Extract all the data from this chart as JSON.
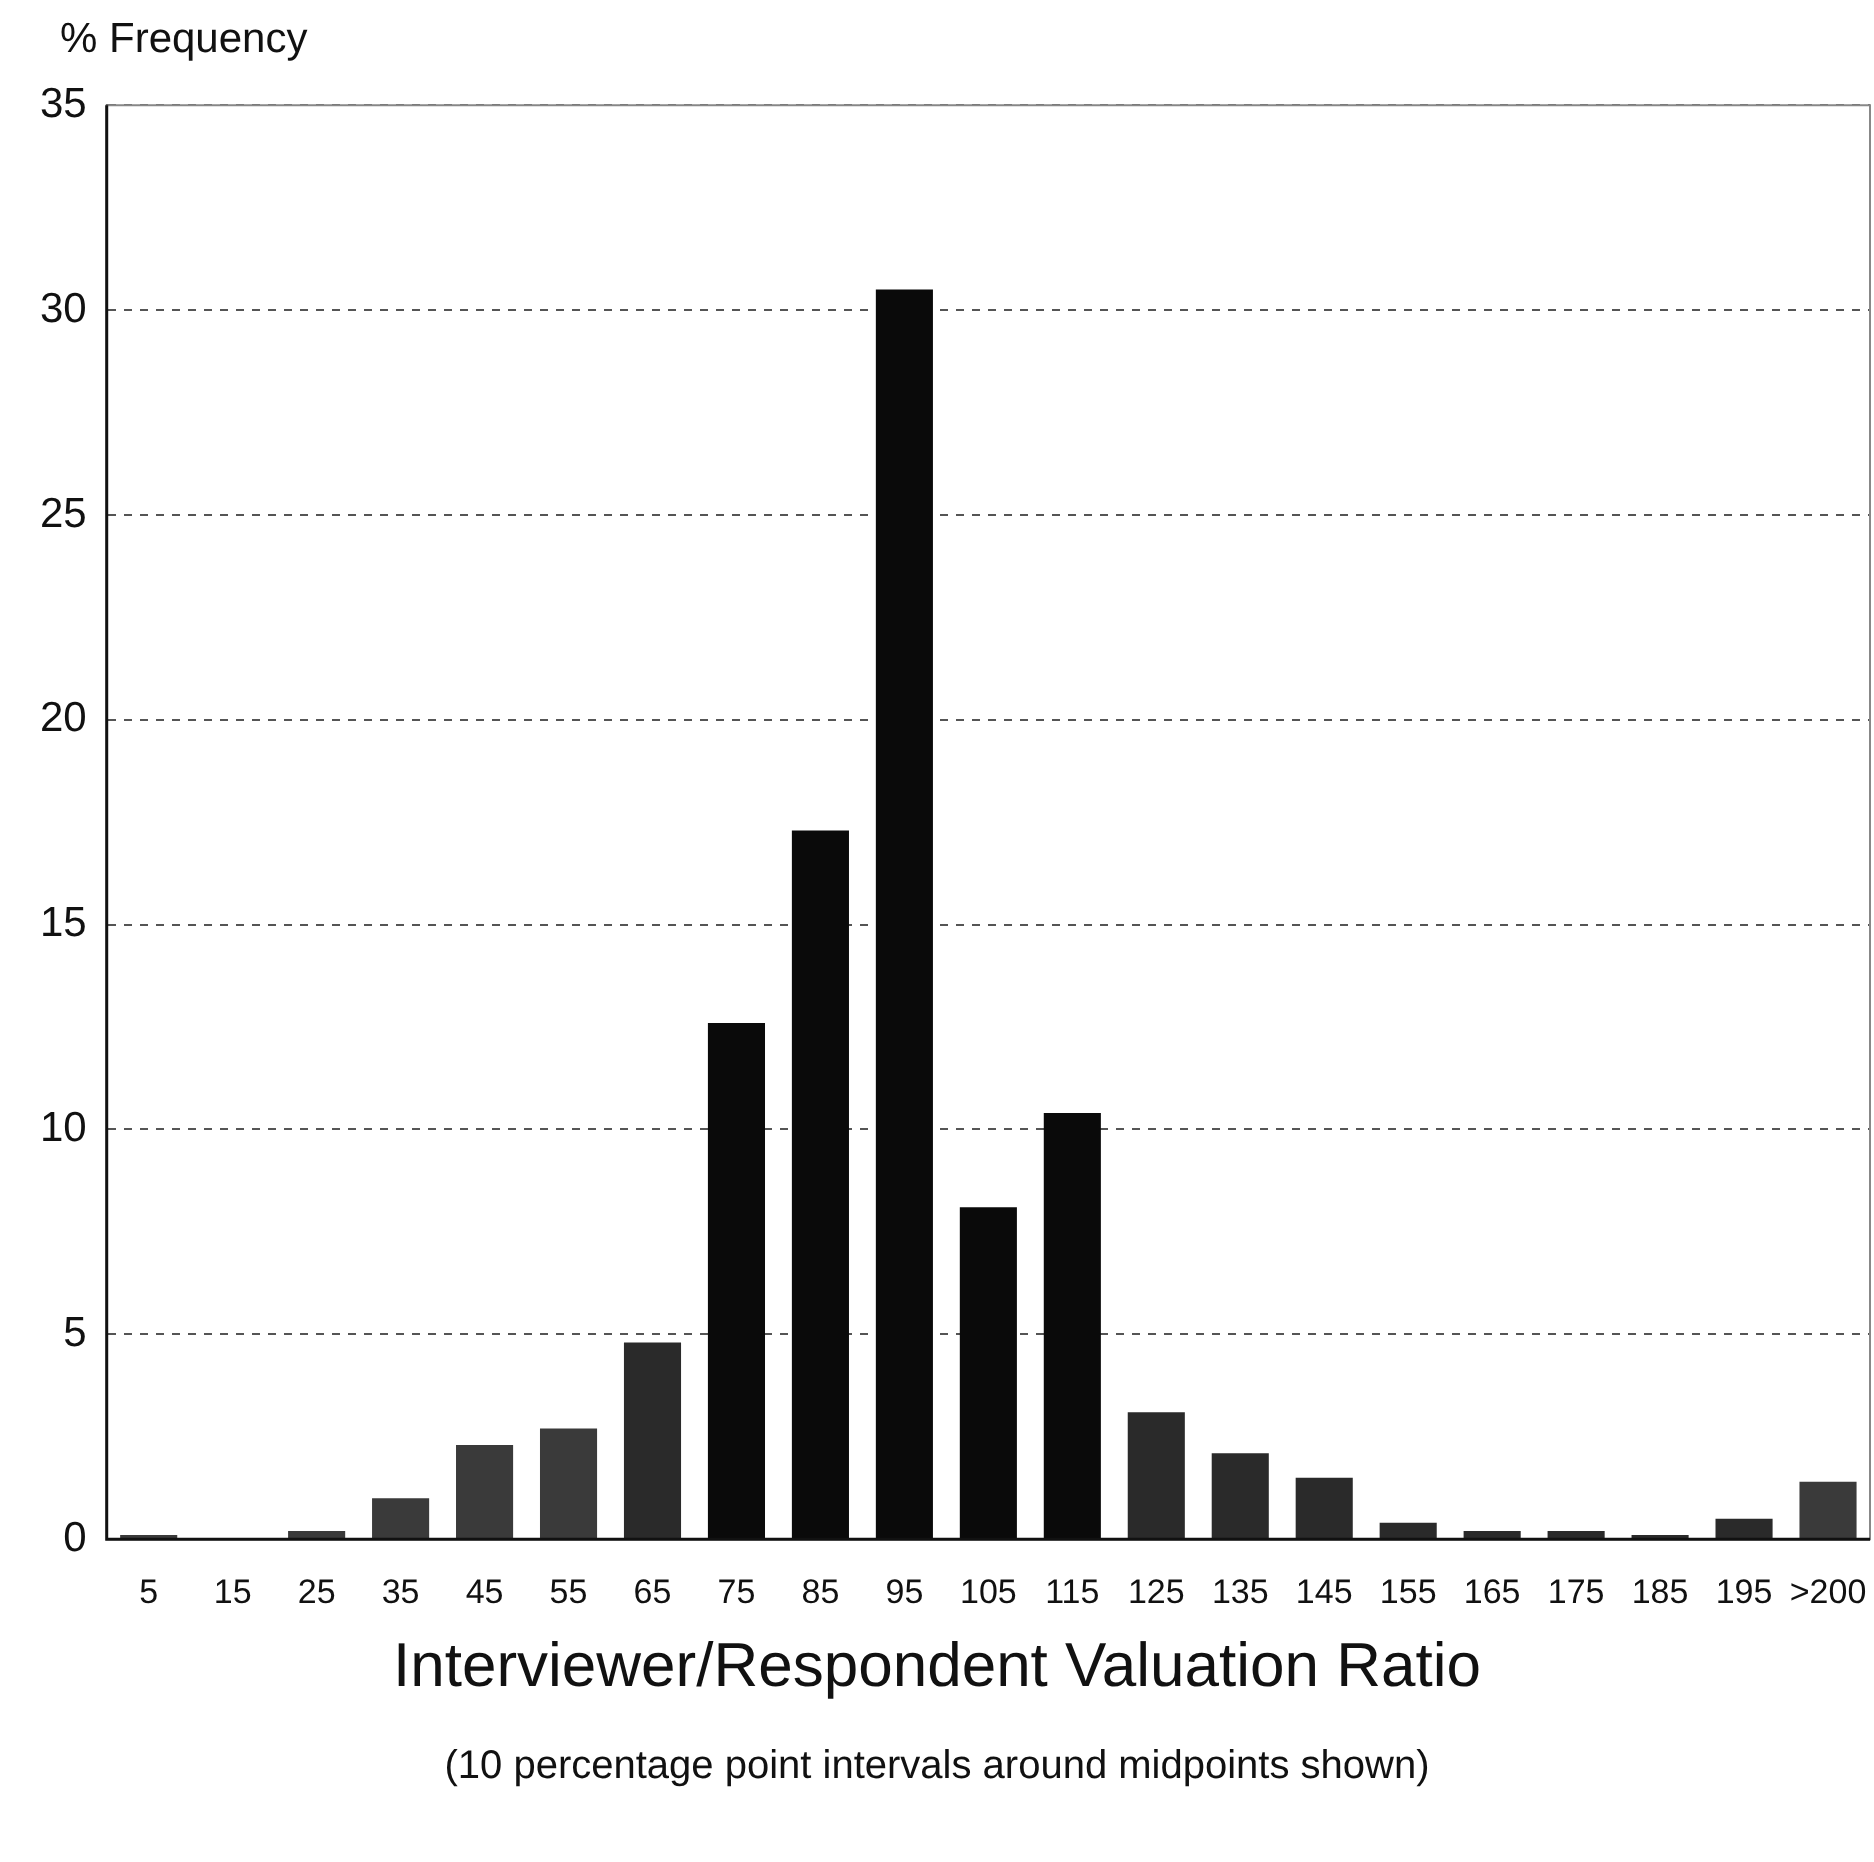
{
  "chart_data": {
    "type": "bar",
    "ylabel": "% Frequency",
    "xlabel": "Interviewer/Respondent Valuation Ratio",
    "annotations": [
      "(10 percentage point intervals around midpoints shown)"
    ],
    "categories": [
      "5",
      "15",
      "25",
      "35",
      "45",
      "55",
      "65",
      "75",
      "85",
      "95",
      "105",
      "115",
      "125",
      "135",
      "145",
      "155",
      "165",
      "175",
      "185",
      "195",
      ">200"
    ],
    "values": [
      0.1,
      0,
      0.2,
      1.0,
      2.3,
      2.7,
      4.8,
      12.6,
      17.3,
      30.5,
      8.1,
      10.4,
      3.1,
      2.1,
      1.5,
      0.4,
      0.2,
      0.2,
      0.1,
      0.5,
      1.4
    ],
    "colors": [
      "#3a3a3a",
      "#3a3a3a",
      "#3a3a3a",
      "#3a3a3a",
      "#3a3a3a",
      "#3a3a3a",
      "#2a2a2a",
      "#0a0a0a",
      "#0a0a0a",
      "#0a0a0a",
      "#0a0a0a",
      "#0a0a0a",
      "#2a2a2a",
      "#2a2a2a",
      "#2a2a2a",
      "#2a2a2a",
      "#2a2a2a",
      "#2a2a2a",
      "#2a2a2a",
      "#2a2a2a",
      "#3a3a3a"
    ],
    "ylim": [
      0,
      35
    ],
    "yticks": [
      0,
      5,
      10,
      15,
      20,
      25,
      30,
      35
    ],
    "grid": "y",
    "legend": false
  }
}
